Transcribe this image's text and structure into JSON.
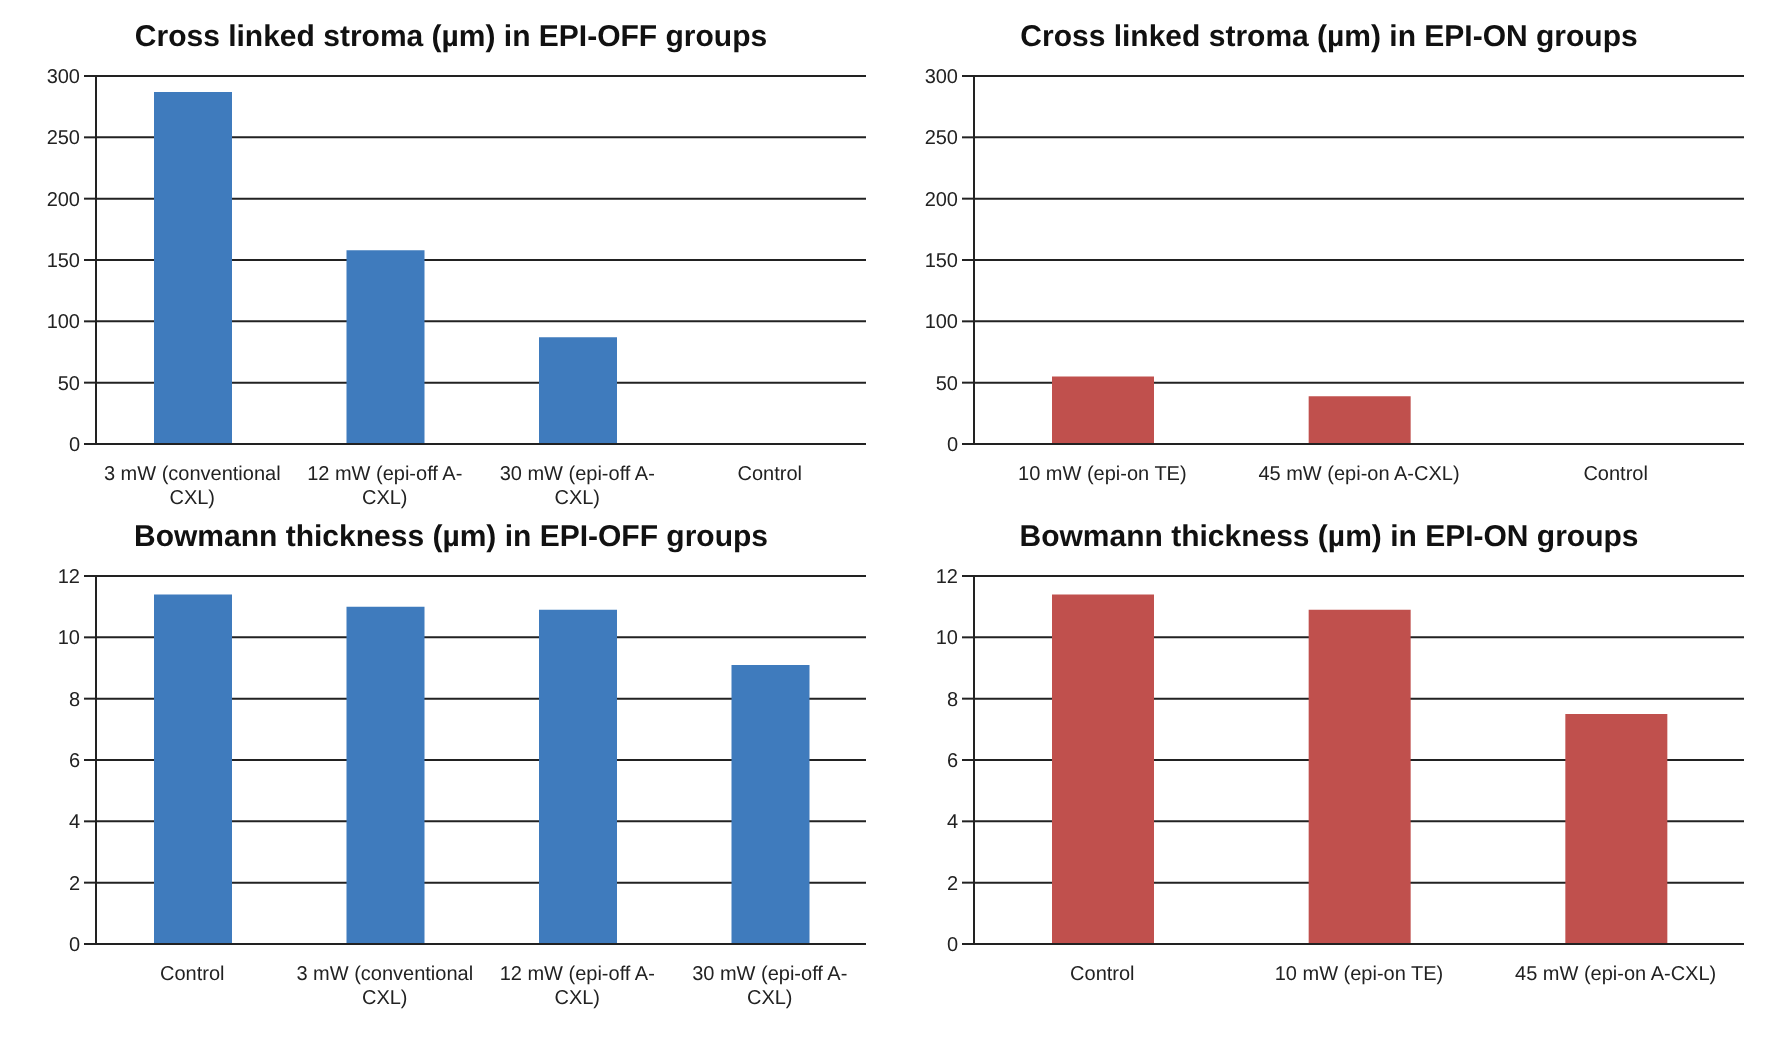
{
  "chart_data": [
    {
      "type": "bar",
      "title": "Cross linked stroma (µm) in EPI-OFF groups",
      "categories": [
        "3 mW (conventional CXL)",
        "12 mW (epi-off A-CXL)",
        "30 mW (epi-off A-CXL)",
        "Control"
      ],
      "values": [
        287,
        158,
        87,
        null
      ],
      "color": "#3f7bbd",
      "ylim": [
        0,
        300
      ],
      "yticks": [
        0,
        50,
        100,
        150,
        200,
        250,
        300
      ],
      "grid": "y"
    },
    {
      "type": "bar",
      "title": "Cross linked stroma (µm) in EPI-ON groups",
      "categories": [
        "10 mW (epi-on TE)",
        "45 mW (epi-on A-CXL)",
        "Control"
      ],
      "values": [
        55,
        39,
        null
      ],
      "color": "#c0504d",
      "ylim": [
        0,
        300
      ],
      "yticks": [
        0,
        50,
        100,
        150,
        200,
        250,
        300
      ],
      "grid": "y"
    },
    {
      "type": "bar",
      "title": "Bowmann thickness (µm) in EPI-OFF groups",
      "categories": [
        "Control",
        "3 mW (conventional CXL)",
        "12 mW (epi-off A-CXL)",
        "30 mW (epi-off A-CXL)"
      ],
      "values": [
        11.4,
        11,
        10.9,
        9.1
      ],
      "color": "#3f7bbd",
      "ylim": [
        0,
        12
      ],
      "yticks": [
        0,
        2,
        4,
        6,
        8,
        10,
        12
      ],
      "grid": "y"
    },
    {
      "type": "bar",
      "title": "Bowmann thickness (µm) in EPI-ON groups",
      "categories": [
        "Control",
        "10 mW (epi-on TE)",
        "45 mW (epi-on A-CXL)"
      ],
      "values": [
        11.4,
        10.9,
        7.5
      ],
      "color": "#c0504d",
      "ylim": [
        0,
        12
      ],
      "yticks": [
        0,
        2,
        4,
        6,
        8,
        10,
        12
      ],
      "grid": "y"
    }
  ]
}
